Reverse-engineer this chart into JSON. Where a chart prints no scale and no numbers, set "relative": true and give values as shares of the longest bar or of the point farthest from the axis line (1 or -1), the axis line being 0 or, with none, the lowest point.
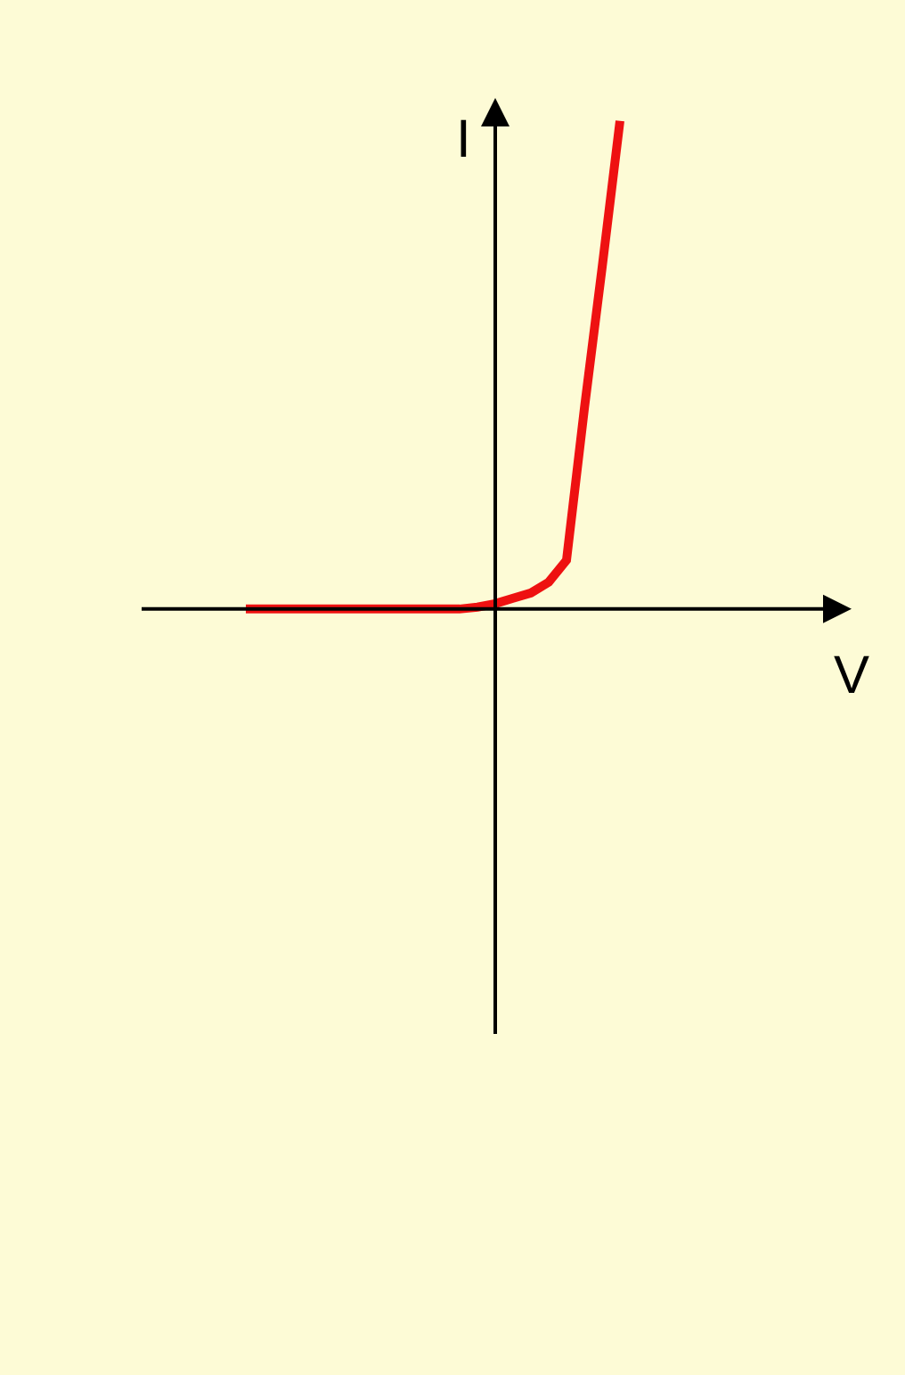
{
  "chart_data": {
    "type": "line",
    "relative": true,
    "xlabel": "V",
    "ylabel": "I",
    "color": "#ee1111",
    "categories": [
      null,
      null,
      null,
      null,
      null,
      null,
      null,
      null,
      null,
      null,
      null,
      null,
      null,
      null,
      null,
      null,
      null,
      null,
      null,
      null,
      null,
      null,
      null,
      null,
      null,
      null,
      null,
      null,
      null,
      null,
      null,
      null,
      null,
      null,
      null,
      null,
      null,
      null,
      null,
      null,
      null
    ],
    "values": [
      null,
      null,
      null,
      null,
      null,
      null,
      0,
      0,
      0,
      0,
      0,
      0,
      0,
      0,
      0,
      0,
      0,
      0,
      0,
      0.004,
      0.011,
      0.022,
      0.033,
      0.055,
      0.1,
      0.41,
      0.7,
      1,
      null,
      null,
      null,
      null,
      null,
      null,
      null,
      null,
      null,
      null,
      null,
      null,
      null
    ]
  }
}
